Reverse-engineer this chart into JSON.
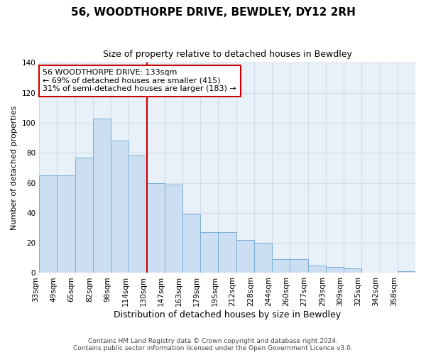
{
  "title": "56, WOODTHORPE DRIVE, BEWDLEY, DY12 2RH",
  "subtitle": "Size of property relative to detached houses in Bewdley",
  "xlabel": "Distribution of detached houses by size in Bewdley",
  "ylabel": "Number of detached properties",
  "bin_labels": [
    "33sqm",
    "49sqm",
    "65sqm",
    "82sqm",
    "98sqm",
    "114sqm",
    "130sqm",
    "147sqm",
    "163sqm",
    "179sqm",
    "195sqm",
    "212sqm",
    "228sqm",
    "244sqm",
    "260sqm",
    "277sqm",
    "293sqm",
    "309sqm",
    "325sqm",
    "342sqm",
    "358sqm"
  ],
  "bar_heights": [
    65,
    65,
    77,
    103,
    88,
    78,
    60,
    59,
    39,
    27,
    27,
    22,
    20,
    9,
    9,
    5,
    4,
    3,
    0,
    0,
    1
  ],
  "bar_color": "#ccdff2",
  "bar_edge_color": "#7aafd4",
  "vline_x_label": "130sqm",
  "vline_color": "#cc0000",
  "annotation_text": "56 WOODTHORPE DRIVE: 133sqm\n← 69% of detached houses are smaller (415)\n31% of semi-detached houses are larger (183) →",
  "annotation_box_color": "#ffffff",
  "annotation_box_edge_color": "#cc0000",
  "ylim": [
    0,
    140
  ],
  "yticks": [
    0,
    20,
    40,
    60,
    80,
    100,
    120,
    140
  ],
  "footer_line1": "Contains HM Land Registry data © Crown copyright and database right 2024.",
  "footer_line2": "Contains public sector information licensed under the Open Government Licence v3.0.",
  "background_color": "#ffffff",
  "grid_color": "#d0dce8",
  "title_fontsize": 11,
  "subtitle_fontsize": 9,
  "xlabel_fontsize": 9,
  "ylabel_fontsize": 8,
  "tick_fontsize": 7.5,
  "ann_fontsize": 8,
  "footer_fontsize": 6.5
}
